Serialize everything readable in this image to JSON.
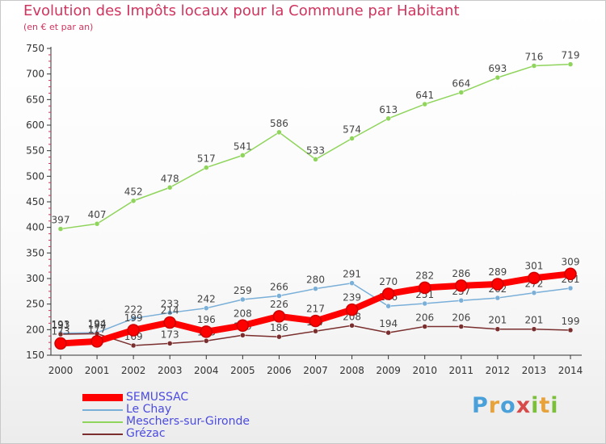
{
  "header": {
    "title": "Evolution des Impôts locaux pour la Commune par Habitant",
    "subtitle": "(en € et par an)"
  },
  "logo": {
    "text": "Proxiti"
  },
  "chart_data": {
    "type": "line",
    "title": "Evolution des Impôts locaux pour la Commune par Habitant",
    "subtitle": "(en € et par an)",
    "xlabel": "",
    "ylabel": "",
    "x": [
      2000,
      2001,
      2002,
      2003,
      2004,
      2005,
      2006,
      2007,
      2008,
      2009,
      2010,
      2011,
      2012,
      2013,
      2014
    ],
    "ylim": [
      150,
      750
    ],
    "yticks": [
      150,
      200,
      250,
      300,
      350,
      400,
      450,
      500,
      550,
      600,
      650,
      700,
      750
    ],
    "grid": false,
    "legend_position": "bottom-left",
    "series": [
      {
        "name": "Meschers-sur-Gironde",
        "color": "#8fd45b",
        "values": [
          397,
          407,
          452,
          478,
          517,
          541,
          586,
          533,
          574,
          613,
          641,
          664,
          693,
          716,
          719
        ]
      },
      {
        "name": "Le Chay",
        "color": "#7aafd8",
        "values": [
          193,
          194,
          222,
          233,
          242,
          259,
          266,
          280,
          291,
          246,
          251,
          257,
          262,
          272,
          281
        ]
      },
      {
        "name": "Grézac",
        "color": "#7a2e2e",
        "values": [
          191,
          192,
          169,
          173,
          178,
          189,
          186,
          197,
          208,
          194,
          206,
          206,
          201,
          201,
          199
        ]
      },
      {
        "name": "SEMUSSAC",
        "color": "#ff0000",
        "values": [
          173,
          177,
          199,
          214,
          196,
          208,
          226,
          217,
          239,
          270,
          282,
          286,
          289,
          301,
          309
        ]
      }
    ],
    "legend": [
      "SEMUSSAC",
      "Le Chay",
      "Meschers-sur-Gironde",
      "Grézac"
    ]
  }
}
